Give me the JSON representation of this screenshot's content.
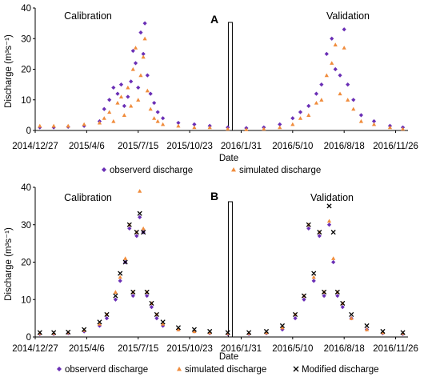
{
  "colors": {
    "observed": "#6a2fb5",
    "simulated": "#f08c3c",
    "modified": "#000000"
  },
  "chart_data": [
    {
      "type": "scatter",
      "panel_label": "A",
      "ylabel": "Discharge (m³s⁻¹)",
      "xlabel": "Date",
      "ylim": [
        0,
        40
      ],
      "yticks": [
        "0",
        "10",
        "20",
        "30",
        "40"
      ],
      "xticks": [
        {
          "date": "2014-12-27",
          "label": "2014/12/27"
        },
        {
          "date": "2015-04-06",
          "label": "2015/4/6"
        },
        {
          "date": "2015-07-15",
          "label": "2015/7/15"
        },
        {
          "date": "2015-10-23",
          "label": "2015/10/23"
        },
        {
          "date": "2016-01-31",
          "label": "2016/1/31"
        },
        {
          "date": "2016-05-10",
          "label": "2016/5/10"
        },
        {
          "date": "2016-08-18",
          "label": "2016/8/18"
        },
        {
          "date": "2016-11-26",
          "label": "2016/11/26"
        }
      ],
      "xrange": [
        "2014-12-27",
        "2016-12-20"
      ],
      "divider_date": "2016-01-10",
      "period_labels": [
        "Calibration",
        "Validation"
      ],
      "legend": [
        "observerd discharge",
        "simulated discharge"
      ],
      "series": [
        {
          "name": "observerd discharge",
          "marker": "diamond",
          "points": [
            [
              "2015-01-05",
              1
            ],
            [
              "2015-02-01",
              1
            ],
            [
              "2015-03-01",
              1.2
            ],
            [
              "2015-04-01",
              1.5
            ],
            [
              "2015-05-01",
              3
            ],
            [
              "2015-05-10",
              7
            ],
            [
              "2015-05-20",
              10
            ],
            [
              "2015-05-28",
              14
            ],
            [
              "2015-06-05",
              12
            ],
            [
              "2015-06-12",
              15
            ],
            [
              "2015-06-18",
              8
            ],
            [
              "2015-06-25",
              11
            ],
            [
              "2015-07-01",
              16
            ],
            [
              "2015-07-05",
              26
            ],
            [
              "2015-07-10",
              22
            ],
            [
              "2015-07-15",
              14
            ],
            [
              "2015-07-20",
              32
            ],
            [
              "2015-07-25",
              25
            ],
            [
              "2015-07-28",
              35
            ],
            [
              "2015-08-02",
              18
            ],
            [
              "2015-08-08",
              12
            ],
            [
              "2015-08-15",
              9
            ],
            [
              "2015-08-22",
              6
            ],
            [
              "2015-09-01",
              4
            ],
            [
              "2015-10-01",
              2.5
            ],
            [
              "2015-11-01",
              2
            ],
            [
              "2015-12-01",
              1.5
            ],
            [
              "2016-01-05",
              1
            ],
            [
              "2016-02-10",
              0.8
            ],
            [
              "2016-03-15",
              1
            ],
            [
              "2016-04-15",
              2
            ],
            [
              "2016-05-10",
              4
            ],
            [
              "2016-05-25",
              6
            ],
            [
              "2016-06-10",
              8
            ],
            [
              "2016-06-25",
              12
            ],
            [
              "2016-07-05",
              15
            ],
            [
              "2016-07-15",
              25
            ],
            [
              "2016-07-25",
              30
            ],
            [
              "2016-08-01",
              20
            ],
            [
              "2016-08-10",
              18
            ],
            [
              "2016-08-18",
              33
            ],
            [
              "2016-08-25",
              15
            ],
            [
              "2016-09-05",
              10
            ],
            [
              "2016-09-20",
              5
            ],
            [
              "2016-10-15",
              3
            ],
            [
              "2016-11-15",
              1.5
            ],
            [
              "2016-12-10",
              1
            ]
          ]
        },
        {
          "name": "simulated discharge",
          "marker": "triangle",
          "points": [
            [
              "2015-01-05",
              1.5
            ],
            [
              "2015-02-01",
              1.5
            ],
            [
              "2015-03-01",
              1.5
            ],
            [
              "2015-04-01",
              2
            ],
            [
              "2015-05-01",
              2.5
            ],
            [
              "2015-05-10",
              4
            ],
            [
              "2015-05-20",
              6
            ],
            [
              "2015-05-28",
              3
            ],
            [
              "2015-06-05",
              9
            ],
            [
              "2015-06-12",
              11
            ],
            [
              "2015-06-18",
              5
            ],
            [
              "2015-06-25",
              14
            ],
            [
              "2015-07-01",
              8
            ],
            [
              "2015-07-05",
              20
            ],
            [
              "2015-07-10",
              27
            ],
            [
              "2015-07-15",
              10
            ],
            [
              "2015-07-20",
              18
            ],
            [
              "2015-07-25",
              24
            ],
            [
              "2015-07-28",
              30
            ],
            [
              "2015-08-02",
              13
            ],
            [
              "2015-08-08",
              7
            ],
            [
              "2015-08-15",
              4
            ],
            [
              "2015-08-22",
              3
            ],
            [
              "2015-09-01",
              2
            ],
            [
              "2015-10-01",
              1.5
            ],
            [
              "2015-11-01",
              1
            ],
            [
              "2015-12-01",
              1
            ],
            [
              "2016-01-05",
              0.5
            ],
            [
              "2016-02-10",
              0.3
            ],
            [
              "2016-03-15",
              0.5
            ],
            [
              "2016-04-15",
              1
            ],
            [
              "2016-05-10",
              2
            ],
            [
              "2016-05-25",
              4
            ],
            [
              "2016-06-10",
              5
            ],
            [
              "2016-06-25",
              9
            ],
            [
              "2016-07-05",
              10
            ],
            [
              "2016-07-15",
              18
            ],
            [
              "2016-07-25",
              22
            ],
            [
              "2016-08-01",
              28
            ],
            [
              "2016-08-10",
              12
            ],
            [
              "2016-08-18",
              27
            ],
            [
              "2016-08-25",
              10
            ],
            [
              "2016-09-05",
              7
            ],
            [
              "2016-09-20",
              3
            ],
            [
              "2016-10-15",
              2
            ],
            [
              "2016-11-15",
              1
            ],
            [
              "2016-12-10",
              0.5
            ]
          ]
        }
      ]
    },
    {
      "type": "scatter",
      "panel_label": "B",
      "ylabel": "Discharge (m³s⁻¹)",
      "xlabel": "Date",
      "ylim": [
        0,
        40
      ],
      "yticks": [
        "0",
        "10",
        "20",
        "30",
        "40"
      ],
      "xticks": [
        {
          "date": "2014-12-27",
          "label": "2014/12/27"
        },
        {
          "date": "2015-04-06",
          "label": "2015/4/6"
        },
        {
          "date": "2015-07-15",
          "label": "2015/7/15"
        },
        {
          "date": "2015-10-23",
          "label": "2015/10/23"
        },
        {
          "date": "2016-01-31",
          "label": "2016/1/31"
        },
        {
          "date": "2016-05-10",
          "label": "2016/5/10"
        },
        {
          "date": "2016-08-18",
          "label": "2016/8/18"
        },
        {
          "date": "2016-11-26",
          "label": "2016/11/26"
        }
      ],
      "xrange": [
        "2014-12-27",
        "2016-12-20"
      ],
      "divider_date": "2016-01-10",
      "period_labels": [
        "Calibration",
        "Validation"
      ],
      "legend": [
        "observerd discharge",
        "simulated discharge",
        "Modified discharge"
      ],
      "series": [
        {
          "name": "observerd discharge",
          "marker": "diamond",
          "points": [
            [
              "2015-01-05",
              0.8
            ],
            [
              "2015-02-01",
              0.8
            ],
            [
              "2015-03-01",
              1
            ],
            [
              "2015-04-01",
              1.5
            ],
            [
              "2015-05-01",
              3
            ],
            [
              "2015-05-15",
              5
            ],
            [
              "2015-06-01",
              10
            ],
            [
              "2015-06-10",
              15
            ],
            [
              "2015-06-20",
              20
            ],
            [
              "2015-06-28",
              29
            ],
            [
              "2015-07-05",
              11
            ],
            [
              "2015-07-12",
              27
            ],
            [
              "2015-07-18",
              32
            ],
            [
              "2015-07-25",
              28
            ],
            [
              "2015-08-01",
              11
            ],
            [
              "2015-08-10",
              8
            ],
            [
              "2015-08-20",
              5
            ],
            [
              "2015-09-01",
              3
            ],
            [
              "2015-10-01",
              2
            ],
            [
              "2015-11-01",
              1.5
            ],
            [
              "2015-12-01",
              1
            ],
            [
              "2016-01-05",
              0.8
            ],
            [
              "2016-02-15",
              0.8
            ],
            [
              "2016-03-20",
              1
            ],
            [
              "2016-04-20",
              2
            ],
            [
              "2016-05-15",
              5
            ],
            [
              "2016-06-01",
              10
            ],
            [
              "2016-06-10",
              29
            ],
            [
              "2016-06-20",
              15
            ],
            [
              "2016-07-01",
              27
            ],
            [
              "2016-07-10",
              11
            ],
            [
              "2016-07-20",
              30
            ],
            [
              "2016-07-28",
              20
            ],
            [
              "2016-08-05",
              11
            ],
            [
              "2016-08-15",
              8
            ],
            [
              "2016-09-01",
              5
            ],
            [
              "2016-10-01",
              2
            ],
            [
              "2016-11-01",
              1
            ],
            [
              "2016-12-10",
              0.8
            ]
          ]
        },
        {
          "name": "simulated discharge",
          "marker": "triangle",
          "points": [
            [
              "2015-01-05",
              1
            ],
            [
              "2015-02-01",
              1
            ],
            [
              "2015-03-01",
              1.2
            ],
            [
              "2015-04-01",
              1.8
            ],
            [
              "2015-05-01",
              3.5
            ],
            [
              "2015-05-15",
              6
            ],
            [
              "2015-06-01",
              12
            ],
            [
              "2015-06-10",
              16
            ],
            [
              "2015-06-20",
              21
            ],
            [
              "2015-06-28",
              30
            ],
            [
              "2015-07-05",
              12
            ],
            [
              "2015-07-12",
              28
            ],
            [
              "2015-07-18",
              39
            ],
            [
              "2015-07-25",
              29
            ],
            [
              "2015-08-01",
              12
            ],
            [
              "2015-08-10",
              9
            ],
            [
              "2015-08-20",
              6
            ],
            [
              "2015-09-01",
              3.5
            ],
            [
              "2015-10-01",
              2
            ],
            [
              "2015-11-01",
              1.5
            ],
            [
              "2015-12-01",
              1.2
            ],
            [
              "2016-01-05",
              1
            ],
            [
              "2016-02-15",
              1
            ],
            [
              "2016-03-20",
              1.2
            ],
            [
              "2016-04-20",
              2.5
            ],
            [
              "2016-05-15",
              6
            ],
            [
              "2016-06-01",
              11
            ],
            [
              "2016-06-10",
              30
            ],
            [
              "2016-06-20",
              16
            ],
            [
              "2016-07-01",
              28
            ],
            [
              "2016-07-10",
              12
            ],
            [
              "2016-07-20",
              31
            ],
            [
              "2016-07-28",
              21
            ],
            [
              "2016-08-05",
              12
            ],
            [
              "2016-08-15",
              9
            ],
            [
              "2016-09-01",
              5
            ],
            [
              "2016-10-01",
              2
            ],
            [
              "2016-11-01",
              1.2
            ],
            [
              "2016-12-10",
              1
            ]
          ]
        },
        {
          "name": "Modified discharge",
          "marker": "cross",
          "points": [
            [
              "2015-01-05",
              1.2
            ],
            [
              "2015-02-01",
              1.2
            ],
            [
              "2015-03-01",
              1.3
            ],
            [
              "2015-04-01",
              2
            ],
            [
              "2015-05-01",
              4
            ],
            [
              "2015-05-15",
              6
            ],
            [
              "2015-06-01",
              11
            ],
            [
              "2015-06-10",
              17
            ],
            [
              "2015-06-20",
              20
            ],
            [
              "2015-06-28",
              30
            ],
            [
              "2015-07-05",
              12
            ],
            [
              "2015-07-12",
              28
            ],
            [
              "2015-07-18",
              33
            ],
            [
              "2015-07-25",
              28
            ],
            [
              "2015-08-01",
              12
            ],
            [
              "2015-08-10",
              9
            ],
            [
              "2015-08-20",
              6
            ],
            [
              "2015-09-01",
              4
            ],
            [
              "2015-10-01",
              2.5
            ],
            [
              "2015-11-01",
              2
            ],
            [
              "2015-12-01",
              1.5
            ],
            [
              "2016-01-05",
              1.2
            ],
            [
              "2016-02-15",
              1.2
            ],
            [
              "2016-03-20",
              1.5
            ],
            [
              "2016-04-20",
              3
            ],
            [
              "2016-05-15",
              6
            ],
            [
              "2016-06-01",
              11
            ],
            [
              "2016-06-10",
              30
            ],
            [
              "2016-06-20",
              17
            ],
            [
              "2016-07-01",
              28
            ],
            [
              "2016-07-10",
              12
            ],
            [
              "2016-07-20",
              35
            ],
            [
              "2016-07-28",
              28
            ],
            [
              "2016-08-05",
              12
            ],
            [
              "2016-08-15",
              9
            ],
            [
              "2016-09-01",
              6
            ],
            [
              "2016-10-01",
              3
            ],
            [
              "2016-11-01",
              1.5
            ],
            [
              "2016-12-10",
              1.2
            ]
          ]
        }
      ]
    }
  ]
}
